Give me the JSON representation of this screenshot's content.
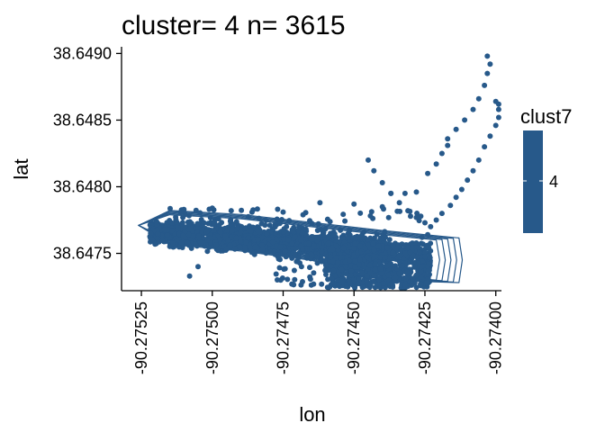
{
  "chart_data": {
    "type": "scatter",
    "title": "cluster= 4 n= 3615",
    "xlabel": "lon",
    "ylabel": "lat",
    "xlim": [
      -90.27532,
      -90.27398
    ],
    "ylim": [
      38.64722,
      38.64905
    ],
    "x_ticks": [
      -90.27525,
      -90.275,
      -90.27475,
      -90.2745,
      -90.27425,
      -90.274
    ],
    "x_tick_labels": [
      "-90.27525",
      "-90.27500",
      "-90.27475",
      "-90.27450",
      "-90.27425",
      "-90.27400"
    ],
    "y_ticks": [
      38.6475,
      38.648,
      38.6485,
      38.649
    ],
    "y_tick_labels": [
      "38.6475",
      "38.6480",
      "38.6485",
      "38.6490"
    ],
    "point_color": "#27598A",
    "contour_color": "#27598A",
    "grid": false,
    "legend": {
      "title": "clust7",
      "label": "4",
      "placement": "right",
      "color": "#27598A"
    },
    "series": [
      {
        "values": [
          [
            -90.27508,
            38.64733
          ],
          [
            -90.27505,
            38.6474
          ],
          [
            -90.2751,
            38.64783
          ],
          [
            -90.275,
            38.64784
          ],
          [
            -90.27475,
            38.64781
          ],
          [
            -90.27462,
            38.64788
          ],
          [
            -90.2745,
            38.64787
          ],
          [
            -90.2744,
            38.64785
          ],
          [
            -90.27437,
            38.64795
          ],
          [
            -90.27432,
            38.64795
          ],
          [
            -90.27428,
            38.64796
          ],
          [
            -90.27426,
            38.64762
          ],
          [
            -90.27424,
            38.64764
          ],
          [
            -90.27423,
            38.6477
          ],
          [
            -90.27421,
            38.64775
          ],
          [
            -90.27419,
            38.6478
          ],
          [
            -90.27416,
            38.64786
          ],
          [
            -90.27414,
            38.64792
          ],
          [
            -90.27412,
            38.64798
          ],
          [
            -90.2741,
            38.64805
          ],
          [
            -90.27408,
            38.64812
          ],
          [
            -90.27406,
            38.6482
          ],
          [
            -90.27404,
            38.6483
          ],
          [
            -90.27402,
            38.64838
          ],
          [
            -90.274,
            38.64846
          ],
          [
            -90.27399,
            38.64852
          ],
          [
            -90.27399,
            38.64858
          ],
          [
            -90.27399,
            38.64862
          ],
          [
            -90.274,
            38.64864
          ],
          [
            -90.27425,
            38.64773
          ],
          [
            -90.27428,
            38.64777
          ],
          [
            -90.27431,
            38.64782
          ],
          [
            -90.27434,
            38.64788
          ],
          [
            -90.27437,
            38.64795
          ],
          [
            -90.2744,
            38.64803
          ],
          [
            -90.27443,
            38.64812
          ],
          [
            -90.27445,
            38.6482
          ],
          [
            -90.27417,
            38.64836
          ],
          [
            -90.27414,
            38.64843
          ],
          [
            -90.27411,
            38.6485
          ],
          [
            -90.27408,
            38.64858
          ],
          [
            -90.27406,
            38.64866
          ],
          [
            -90.27404,
            38.64876
          ],
          [
            -90.27403,
            38.64885
          ],
          [
            -90.27402,
            38.64892
          ],
          [
            -90.27403,
            38.64898
          ],
          [
            -90.27424,
            38.6481
          ],
          [
            -90.27421,
            38.64817
          ],
          [
            -90.27419,
            38.64825
          ],
          [
            -90.27417,
            38.64831
          ]
        ]
      }
    ]
  }
}
